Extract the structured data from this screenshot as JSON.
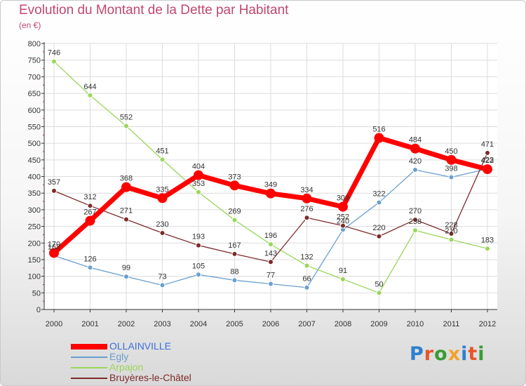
{
  "header": {
    "title": "Evolution du Montant de la Dette par Habitant",
    "subtitle": "(en €)"
  },
  "brand": {
    "text": "Proxiti",
    "colors": [
      "#2e7fd0",
      "#e8542a",
      "#3a9b35",
      "#f2a22b",
      "#2e7fd0",
      "#e8542a",
      "#3a9b35"
    ]
  },
  "chart_data": {
    "type": "line",
    "x": [
      "2000",
      "2001",
      "2002",
      "2003",
      "2004",
      "2005",
      "2006",
      "2007",
      "2008",
      "2009",
      "2010",
      "2011",
      "2012"
    ],
    "ylim": [
      0,
      800
    ],
    "yticks": [
      0,
      50,
      100,
      150,
      200,
      250,
      300,
      350,
      400,
      450,
      500,
      550,
      600,
      650,
      700,
      750,
      800
    ],
    "grid": true,
    "legend_position": "bottom-left",
    "series": [
      {
        "name": "OLLAINVILLE",
        "color": "#ff0000",
        "emphasis": true,
        "values": [
          170,
          267,
          368,
          335,
          404,
          373,
          349,
          334,
          309,
          516,
          484,
          450,
          422
        ]
      },
      {
        "name": "Egly",
        "color": "#6a9fcf",
        "emphasis": false,
        "values": [
          162,
          126,
          99,
          73,
          105,
          88,
          77,
          66,
          240,
          322,
          420,
          398,
          423
        ]
      },
      {
        "name": "Arpajon",
        "color": "#99d65a",
        "emphasis": false,
        "values": [
          746,
          644,
          552,
          451,
          353,
          269,
          196,
          132,
          91,
          50,
          238,
          210,
          183
        ]
      },
      {
        "name": "Bruyères-le-Châtel",
        "color": "#7d2a2a",
        "emphasis": false,
        "values": [
          357,
          312,
          271,
          230,
          193,
          167,
          143,
          276,
          252,
          220,
          270,
          228,
          471
        ]
      }
    ]
  }
}
